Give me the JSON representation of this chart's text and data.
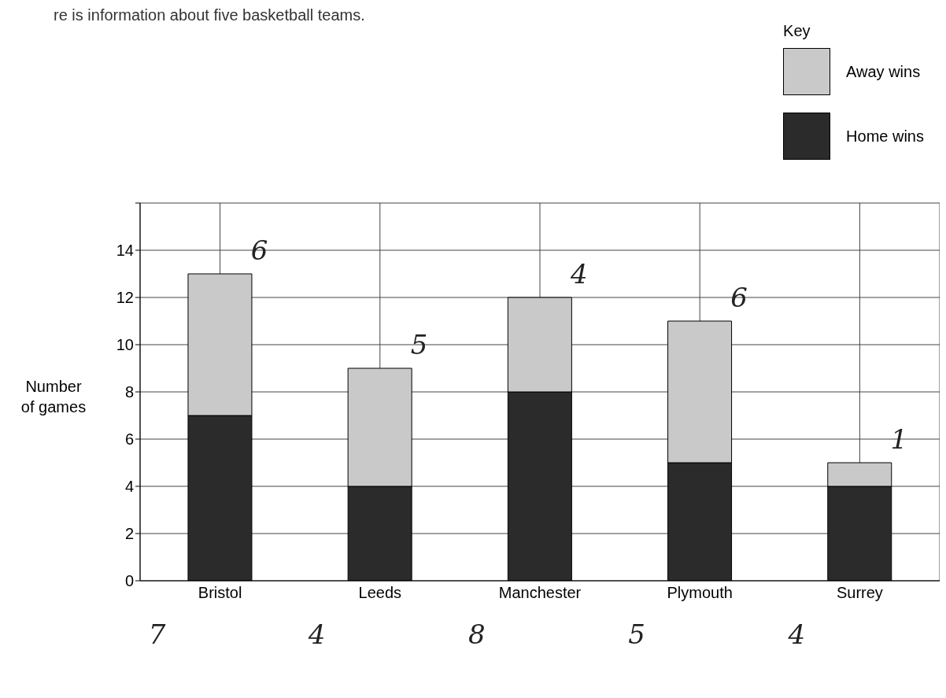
{
  "chart_data": {
    "type": "bar",
    "title": "re is information about five basketball teams.",
    "categories": [
      "Bristol",
      "Leeds",
      "Manchester",
      "Plymouth",
      "Surrey"
    ],
    "stacked": true,
    "series": [
      {
        "name": "Home wins",
        "color": "#2b2b2b",
        "values": [
          7,
          4,
          8,
          5,
          4
        ]
      },
      {
        "name": "Away wins",
        "color": "#c9c9c9",
        "values": [
          6,
          5,
          4,
          6,
          1
        ]
      }
    ],
    "ylabel": "Number of games",
    "ylim": [
      0,
      16
    ],
    "yticks": [
      0,
      2,
      4,
      6,
      8,
      10,
      12,
      14,
      {
        "value": 16,
        "label": null
      }
    ],
    "grid": true,
    "legend": "top right",
    "legend_title": "Key",
    "data_labels": true
  }
}
